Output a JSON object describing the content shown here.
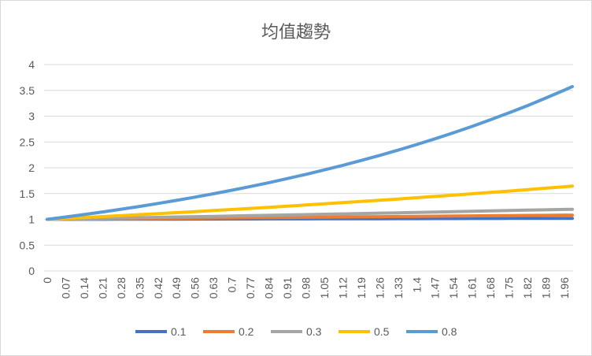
{
  "chart_data": {
    "type": "line",
    "title": "均值趨勢",
    "xlabel": "",
    "ylabel": "",
    "ylim": [
      0,
      4
    ],
    "yticks": [
      "0",
      "0.5",
      "1",
      "1.5",
      "2",
      "2.5",
      "3",
      "3.5",
      "4"
    ],
    "xtick_labels": [
      "0",
      "0.07",
      "0.14",
      "0.21",
      "0.28",
      "0.35",
      "0.42",
      "0.49",
      "0.56",
      "0.63",
      "0.7",
      "0.77",
      "0.84",
      "0.91",
      "0.98",
      "1.05",
      "1.12",
      "1.19",
      "1.26",
      "1.33",
      "1.4",
      "1.47",
      "1.54",
      "1.61",
      "1.68",
      "1.75",
      "1.82",
      "1.89",
      "1.96"
    ],
    "x": [
      0,
      0.07,
      0.14,
      0.21,
      0.28,
      0.35,
      0.42,
      0.49,
      0.56,
      0.63,
      0.7,
      0.77,
      0.84,
      0.91,
      0.98,
      1.05,
      1.12,
      1.19,
      1.26,
      1.33,
      1.4,
      1.47,
      1.54,
      1.61,
      1.68,
      1.75,
      1.82,
      1.89,
      1.96,
      1.99
    ],
    "grid": true,
    "legend_position": "bottom",
    "series": [
      {
        "name": "0.1",
        "color": "#4472C4",
        "values": [
          1,
          1.0007,
          1.0014,
          1.0021,
          1.0028,
          1.0035,
          1.0042,
          1.0049,
          1.0056,
          1.0063,
          1.007,
          1.0077,
          1.0084,
          1.0091,
          1.0099,
          1.0106,
          1.0113,
          1.012,
          1.0127,
          1.0134,
          1.0141,
          1.0148,
          1.0155,
          1.0162,
          1.0169,
          1.0177,
          1.0184,
          1.0191,
          1.0198,
          1.0201
        ]
      },
      {
        "name": "0.2",
        "color": "#ED7D31",
        "values": [
          1,
          1.0028,
          1.0056,
          1.0084,
          1.0113,
          1.0141,
          1.0169,
          1.0198,
          1.0227,
          1.0255,
          1.0284,
          1.0313,
          1.0342,
          1.0371,
          1.04,
          1.0429,
          1.0459,
          1.0488,
          1.0518,
          1.0547,
          1.0577,
          1.0606,
          1.0636,
          1.0666,
          1.0696,
          1.0726,
          1.0756,
          1.0786,
          1.0817,
          1.0829
        ]
      },
      {
        "name": "0.3",
        "color": "#A5A5A5",
        "values": [
          1,
          1.0063,
          1.0127,
          1.0191,
          1.0255,
          1.032,
          1.0385,
          1.0451,
          1.0517,
          1.0583,
          1.065,
          1.0717,
          1.0785,
          1.0853,
          1.0921,
          1.099,
          1.106,
          1.113,
          1.12,
          1.1271,
          1.1342,
          1.1414,
          1.1486,
          1.1558,
          1.1631,
          1.1705,
          1.1779,
          1.1853,
          1.1928,
          1.1961
        ]
      },
      {
        "name": "0.5",
        "color": "#FFC000",
        "values": [
          1,
          1.0177,
          1.0356,
          1.0538,
          1.0724,
          1.0913,
          1.1106,
          1.1302,
          1.1503,
          1.1707,
          1.1912,
          1.2122,
          1.2337,
          1.2554,
          1.2776,
          1.3002,
          1.3231,
          1.3465,
          1.3703,
          1.3945,
          1.4191,
          1.4442,
          1.4697,
          1.4957,
          1.522,
          1.5488,
          1.5762,
          1.6041,
          1.6323,
          1.6446
        ]
      },
      {
        "name": "0.8",
        "color": "#5B9BD5",
        "values": [
          1,
          1.0458,
          1.0937,
          1.1438,
          1.1963,
          1.2511,
          1.3084,
          1.3684,
          1.431,
          1.4966,
          1.5652,
          1.6369,
          1.7119,
          1.7904,
          1.8724,
          1.9582,
          2.0479,
          2.1418,
          2.2399,
          2.3425,
          2.4498,
          2.562,
          2.6794,
          2.8022,
          2.9306,
          3.0649,
          3.2053,
          3.3522,
          3.5058,
          3.5738
        ]
      }
    ]
  }
}
